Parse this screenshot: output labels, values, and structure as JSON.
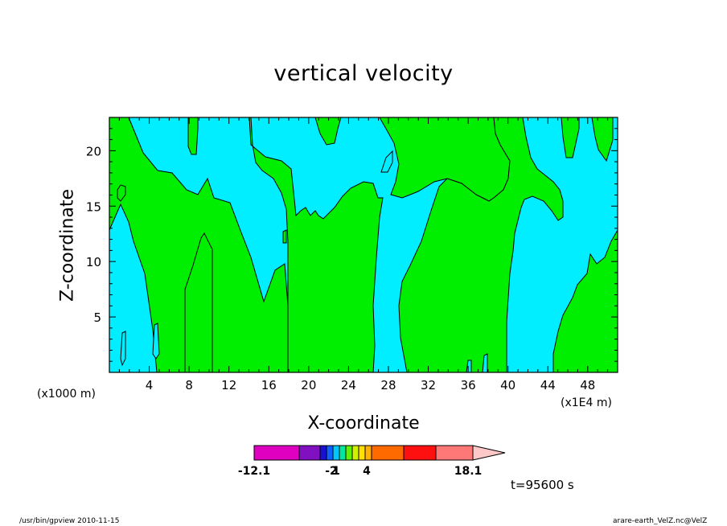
{
  "chart_data": {
    "type": "heatmap",
    "title": "vertical velocity",
    "xlabel": "X-coordinate",
    "ylabel": "Z-coordinate",
    "x_unit_left": "(x1000 m)",
    "x_unit_right": "(x1E4 m)",
    "xlim": [
      0,
      51
    ],
    "ylim": [
      0,
      23
    ],
    "x_ticks": [
      4,
      8,
      12,
      16,
      20,
      24,
      28,
      32,
      36,
      40,
      44,
      48
    ],
    "x_tick_labels": [
      "4",
      "8",
      "12",
      "16",
      "20",
      "24",
      "28",
      "32",
      "36",
      "40",
      "44",
      "48"
    ],
    "y_ticks": [
      5,
      10,
      15,
      20
    ],
    "y_tick_labels": [
      "5",
      "10",
      "15",
      "20"
    ],
    "colorbar": {
      "colors": [
        "#e000c0",
        "#8010c0",
        "#1a10d0",
        "#1060ff",
        "#00c8ff",
        "#00e8a0",
        "#60f000",
        "#d0f000",
        "#ffe000",
        "#ffb000",
        "#ff6a00",
        "#ff1010",
        "#ff7878",
        "#ffc8c8"
      ],
      "labels": [
        "-12.1",
        "-2",
        "1",
        "4",
        "18.1"
      ]
    },
    "fill_colors": {
      "background": "#00eeff",
      "positive": "#00ee00"
    },
    "time_label": "t=95600 s"
  },
  "footer": {
    "left": "/usr/bin/gpview   2010-11-15",
    "right": "arare-earth_VelZ.nc@VelZ"
  }
}
